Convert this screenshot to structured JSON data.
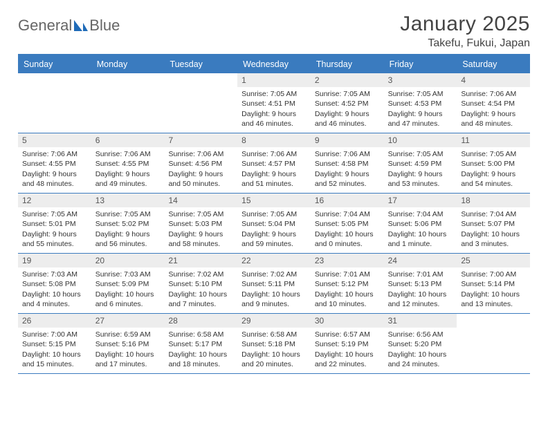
{
  "brand": {
    "part1": "General",
    "part2": "Blue"
  },
  "title": "January 2025",
  "location": "Takefu, Fukui, Japan",
  "colors": {
    "accent": "#3a7bbf",
    "header_bg": "#3a7bbf",
    "header_text": "#ffffff",
    "daynum_bg": "#ededed",
    "text": "#333333",
    "background": "#ffffff"
  },
  "day_labels": [
    "Sunday",
    "Monday",
    "Tuesday",
    "Wednesday",
    "Thursday",
    "Friday",
    "Saturday"
  ],
  "weeks": [
    [
      {
        "n": "",
        "sr": "",
        "ss": "",
        "dl": ""
      },
      {
        "n": "",
        "sr": "",
        "ss": "",
        "dl": ""
      },
      {
        "n": "",
        "sr": "",
        "ss": "",
        "dl": ""
      },
      {
        "n": "1",
        "sr": "Sunrise: 7:05 AM",
        "ss": "Sunset: 4:51 PM",
        "dl": "Daylight: 9 hours and 46 minutes."
      },
      {
        "n": "2",
        "sr": "Sunrise: 7:05 AM",
        "ss": "Sunset: 4:52 PM",
        "dl": "Daylight: 9 hours and 46 minutes."
      },
      {
        "n": "3",
        "sr": "Sunrise: 7:05 AM",
        "ss": "Sunset: 4:53 PM",
        "dl": "Daylight: 9 hours and 47 minutes."
      },
      {
        "n": "4",
        "sr": "Sunrise: 7:06 AM",
        "ss": "Sunset: 4:54 PM",
        "dl": "Daylight: 9 hours and 48 minutes."
      }
    ],
    [
      {
        "n": "5",
        "sr": "Sunrise: 7:06 AM",
        "ss": "Sunset: 4:55 PM",
        "dl": "Daylight: 9 hours and 48 minutes."
      },
      {
        "n": "6",
        "sr": "Sunrise: 7:06 AM",
        "ss": "Sunset: 4:55 PM",
        "dl": "Daylight: 9 hours and 49 minutes."
      },
      {
        "n": "7",
        "sr": "Sunrise: 7:06 AM",
        "ss": "Sunset: 4:56 PM",
        "dl": "Daylight: 9 hours and 50 minutes."
      },
      {
        "n": "8",
        "sr": "Sunrise: 7:06 AM",
        "ss": "Sunset: 4:57 PM",
        "dl": "Daylight: 9 hours and 51 minutes."
      },
      {
        "n": "9",
        "sr": "Sunrise: 7:06 AM",
        "ss": "Sunset: 4:58 PM",
        "dl": "Daylight: 9 hours and 52 minutes."
      },
      {
        "n": "10",
        "sr": "Sunrise: 7:05 AM",
        "ss": "Sunset: 4:59 PM",
        "dl": "Daylight: 9 hours and 53 minutes."
      },
      {
        "n": "11",
        "sr": "Sunrise: 7:05 AM",
        "ss": "Sunset: 5:00 PM",
        "dl": "Daylight: 9 hours and 54 minutes."
      }
    ],
    [
      {
        "n": "12",
        "sr": "Sunrise: 7:05 AM",
        "ss": "Sunset: 5:01 PM",
        "dl": "Daylight: 9 hours and 55 minutes."
      },
      {
        "n": "13",
        "sr": "Sunrise: 7:05 AM",
        "ss": "Sunset: 5:02 PM",
        "dl": "Daylight: 9 hours and 56 minutes."
      },
      {
        "n": "14",
        "sr": "Sunrise: 7:05 AM",
        "ss": "Sunset: 5:03 PM",
        "dl": "Daylight: 9 hours and 58 minutes."
      },
      {
        "n": "15",
        "sr": "Sunrise: 7:05 AM",
        "ss": "Sunset: 5:04 PM",
        "dl": "Daylight: 9 hours and 59 minutes."
      },
      {
        "n": "16",
        "sr": "Sunrise: 7:04 AM",
        "ss": "Sunset: 5:05 PM",
        "dl": "Daylight: 10 hours and 0 minutes."
      },
      {
        "n": "17",
        "sr": "Sunrise: 7:04 AM",
        "ss": "Sunset: 5:06 PM",
        "dl": "Daylight: 10 hours and 1 minute."
      },
      {
        "n": "18",
        "sr": "Sunrise: 7:04 AM",
        "ss": "Sunset: 5:07 PM",
        "dl": "Daylight: 10 hours and 3 minutes."
      }
    ],
    [
      {
        "n": "19",
        "sr": "Sunrise: 7:03 AM",
        "ss": "Sunset: 5:08 PM",
        "dl": "Daylight: 10 hours and 4 minutes."
      },
      {
        "n": "20",
        "sr": "Sunrise: 7:03 AM",
        "ss": "Sunset: 5:09 PM",
        "dl": "Daylight: 10 hours and 6 minutes."
      },
      {
        "n": "21",
        "sr": "Sunrise: 7:02 AM",
        "ss": "Sunset: 5:10 PM",
        "dl": "Daylight: 10 hours and 7 minutes."
      },
      {
        "n": "22",
        "sr": "Sunrise: 7:02 AM",
        "ss": "Sunset: 5:11 PM",
        "dl": "Daylight: 10 hours and 9 minutes."
      },
      {
        "n": "23",
        "sr": "Sunrise: 7:01 AM",
        "ss": "Sunset: 5:12 PM",
        "dl": "Daylight: 10 hours and 10 minutes."
      },
      {
        "n": "24",
        "sr": "Sunrise: 7:01 AM",
        "ss": "Sunset: 5:13 PM",
        "dl": "Daylight: 10 hours and 12 minutes."
      },
      {
        "n": "25",
        "sr": "Sunrise: 7:00 AM",
        "ss": "Sunset: 5:14 PM",
        "dl": "Daylight: 10 hours and 13 minutes."
      }
    ],
    [
      {
        "n": "26",
        "sr": "Sunrise: 7:00 AM",
        "ss": "Sunset: 5:15 PM",
        "dl": "Daylight: 10 hours and 15 minutes."
      },
      {
        "n": "27",
        "sr": "Sunrise: 6:59 AM",
        "ss": "Sunset: 5:16 PM",
        "dl": "Daylight: 10 hours and 17 minutes."
      },
      {
        "n": "28",
        "sr": "Sunrise: 6:58 AM",
        "ss": "Sunset: 5:17 PM",
        "dl": "Daylight: 10 hours and 18 minutes."
      },
      {
        "n": "29",
        "sr": "Sunrise: 6:58 AM",
        "ss": "Sunset: 5:18 PM",
        "dl": "Daylight: 10 hours and 20 minutes."
      },
      {
        "n": "30",
        "sr": "Sunrise: 6:57 AM",
        "ss": "Sunset: 5:19 PM",
        "dl": "Daylight: 10 hours and 22 minutes."
      },
      {
        "n": "31",
        "sr": "Sunrise: 6:56 AM",
        "ss": "Sunset: 5:20 PM",
        "dl": "Daylight: 10 hours and 24 minutes."
      },
      {
        "n": "",
        "sr": "",
        "ss": "",
        "dl": ""
      }
    ]
  ]
}
